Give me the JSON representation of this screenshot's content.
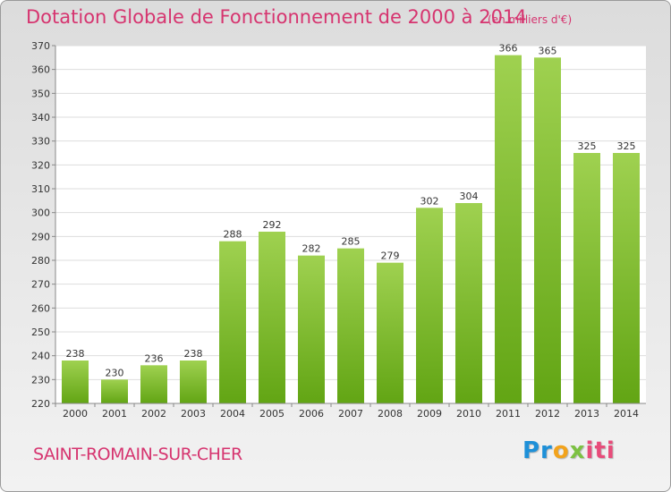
{
  "header": {
    "title": "Dotation Globale de Fonctionnement de 2000 à 2014",
    "subtitle": "(en milliers d'€)"
  },
  "footer": {
    "commune": "SAINT-ROMAIN-SUR-CHER",
    "logo": "Proxiti",
    "logo_colors": [
      "#1e90d8",
      "#f2a31c",
      "#7cc142",
      "#e84c7a"
    ]
  },
  "chart_data": {
    "type": "bar",
    "title": "Dotation Globale de Fonctionnement de 2000 à 2014",
    "subtitle": "(en milliers d'€)",
    "xlabel": "",
    "ylabel": "",
    "categories": [
      "2000",
      "2001",
      "2002",
      "2003",
      "2004",
      "2005",
      "2006",
      "2007",
      "2008",
      "2009",
      "2010",
      "2011",
      "2012",
      "2013",
      "2014"
    ],
    "values": [
      238,
      230,
      236,
      238,
      288,
      292,
      282,
      285,
      279,
      302,
      304,
      366,
      365,
      325,
      325
    ],
    "ylim": [
      220,
      370
    ],
    "yticks": [
      220,
      230,
      240,
      250,
      260,
      270,
      280,
      290,
      300,
      310,
      320,
      330,
      340,
      350,
      360,
      370
    ],
    "grid": true,
    "bar_color_top": "#9fd150",
    "bar_color_bottom": "#62a514",
    "legend": "none"
  }
}
